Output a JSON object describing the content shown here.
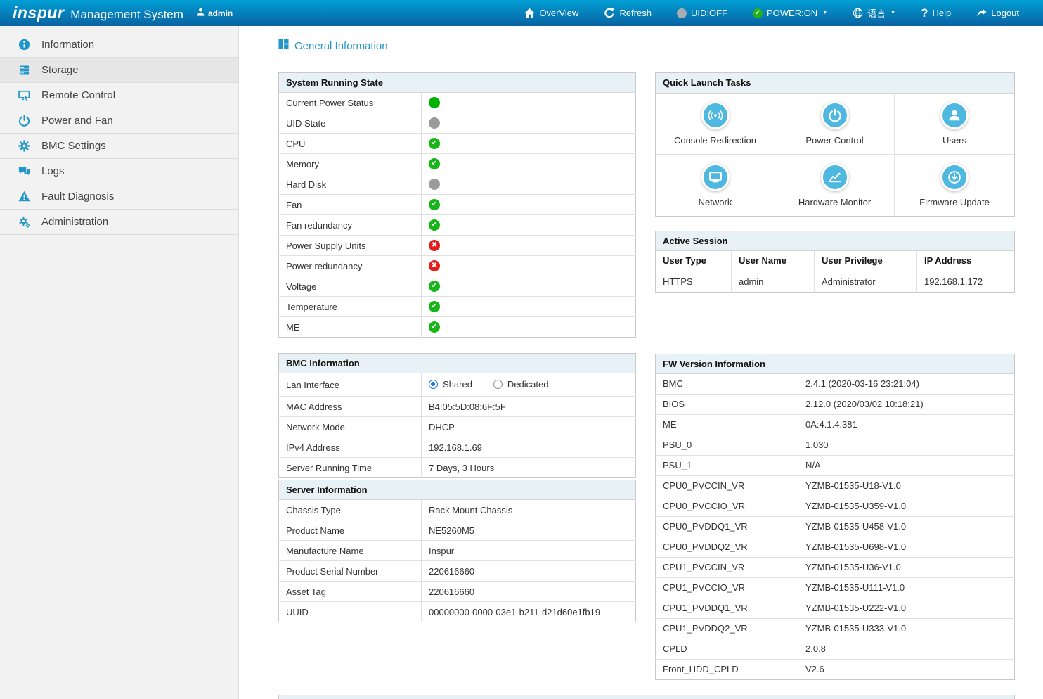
{
  "navbar": {
    "brand": "inspur",
    "product": "Management System",
    "user": "admin",
    "menu": [
      {
        "label": "OverView",
        "icon": "home-icon"
      },
      {
        "label": "Refresh",
        "icon": "refresh-icon"
      },
      {
        "label": "UID:OFF",
        "icon": "uid-off-status-icon"
      },
      {
        "label": "POWER:ON",
        "icon": "power-on-status-icon",
        "caret": true
      },
      {
        "label": "语言",
        "icon": "globe-icon",
        "caret": true
      },
      {
        "label": "Help",
        "icon": "help-icon"
      },
      {
        "label": "Logout",
        "icon": "logout-icon"
      }
    ]
  },
  "sidebar": {
    "items": [
      {
        "label": "Information",
        "icon": "info-icon",
        "active": false
      },
      {
        "label": "Storage",
        "icon": "storage-icon",
        "active": true
      },
      {
        "label": "Remote Control",
        "icon": "remote-control-icon",
        "active": false
      },
      {
        "label": "Power and Fan",
        "icon": "power-icon",
        "active": false
      },
      {
        "label": "BMC Settings",
        "icon": "gear-icon",
        "active": false
      },
      {
        "label": "Logs",
        "icon": "logs-icon",
        "active": false
      },
      {
        "label": "Fault Diagnosis",
        "icon": "warning-icon",
        "active": false
      },
      {
        "label": "Administration",
        "icon": "gears-icon",
        "active": false
      }
    ]
  },
  "main": {
    "page_title": "General Information",
    "system_running_state": {
      "title": "System Running State",
      "rows": [
        {
          "label": "Current Power Status",
          "status": "on"
        },
        {
          "label": "UID State",
          "status": "off"
        },
        {
          "label": "CPU",
          "status": "ok"
        },
        {
          "label": "Memory",
          "status": "ok"
        },
        {
          "label": "Hard Disk",
          "status": "off"
        },
        {
          "label": "Fan",
          "status": "ok"
        },
        {
          "label": "Fan redundancy",
          "status": "ok"
        },
        {
          "label": "Power Supply Units",
          "status": "error"
        },
        {
          "label": "Power redundancy",
          "status": "error"
        },
        {
          "label": "Voltage",
          "status": "ok"
        },
        {
          "label": "Temperature",
          "status": "ok"
        },
        {
          "label": "ME",
          "status": "ok"
        }
      ]
    },
    "quick_launch": {
      "title": "Quick Launch Tasks",
      "tasks": [
        {
          "label": "Console Redirection",
          "icon": "console-redirection-icon"
        },
        {
          "label": "Power Control",
          "icon": "power-control-icon"
        },
        {
          "label": "Users",
          "icon": "users-icon"
        },
        {
          "label": "Network",
          "icon": "network-icon"
        },
        {
          "label": "Hardware Monitor",
          "icon": "hardware-monitor-icon"
        },
        {
          "label": "Firmware Update",
          "icon": "firmware-update-icon"
        }
      ]
    },
    "active_session": {
      "title": "Active Session",
      "columns": [
        "User Type",
        "User Name",
        "User Privilege",
        "IP Address"
      ],
      "rows": [
        {
          "user_type": "HTTPS",
          "user_name": "admin",
          "user_privilege": "Administrator",
          "ip_address": "192.168.1.172"
        }
      ]
    },
    "bmc_information": {
      "title": "BMC Information",
      "lan_interface": {
        "label": "Lan Interface",
        "options": [
          {
            "label": "Shared",
            "selected": true
          },
          {
            "label": "Dedicated",
            "selected": false
          }
        ]
      },
      "rows": [
        {
          "label": "MAC Address",
          "value": "B4:05:5D:08:6F:5F"
        },
        {
          "label": "Network Mode",
          "value": "DHCP"
        },
        {
          "label": "IPv4 Address",
          "value": "192.168.1.69"
        },
        {
          "label": "Server Running Time",
          "value": "7 Days, 3 Hours"
        }
      ]
    },
    "server_information": {
      "title": "Server Information",
      "rows": [
        {
          "label": "Chassis Type",
          "value": "Rack Mount Chassis"
        },
        {
          "label": "Product Name",
          "value": "NE5260M5"
        },
        {
          "label": "Manufacture Name",
          "value": "Inspur"
        },
        {
          "label": "Product Serial Number",
          "value": "220616660"
        },
        {
          "label": "Asset Tag",
          "value": "220616660"
        },
        {
          "label": "UUID",
          "value": "00000000-0000-03e1-b211-d21d60e1fb19"
        }
      ]
    },
    "fw_version": {
      "title": "FW Version Information",
      "rows": [
        {
          "label": "BMC",
          "value": "2.4.1 (2020-03-16 23:21:04)"
        },
        {
          "label": "BIOS",
          "value": "2.12.0 (2020/03/02 10:18:21)"
        },
        {
          "label": "ME",
          "value": "0A:4.1.4.381"
        },
        {
          "label": "PSU_0",
          "value": "1.030"
        },
        {
          "label": "PSU_1",
          "value": "N/A"
        },
        {
          "label": "CPU0_PVCCIN_VR",
          "value": "YZMB-01535-U18-V1.0"
        },
        {
          "label": "CPU0_PVCCIO_VR",
          "value": "YZMB-01535-U359-V1.0"
        },
        {
          "label": "CPU0_PVDDQ1_VR",
          "value": "YZMB-01535-U458-V1.0"
        },
        {
          "label": "CPU0_PVDDQ2_VR",
          "value": "YZMB-01535-U698-V1.0"
        },
        {
          "label": "CPU1_PVCCIN_VR",
          "value": "YZMB-01535-U36-V1.0"
        },
        {
          "label": "CPU1_PVCCIO_VR",
          "value": "YZMB-01535-U111-V1.0"
        },
        {
          "label": "CPU1_PVDDQ1_VR",
          "value": "YZMB-01535-U222-V1.0"
        },
        {
          "label": "CPU1_PVDDQ2_VR",
          "value": "YZMB-01535-U333-V1.0"
        },
        {
          "label": "CPLD",
          "value": "2.0.8"
        },
        {
          "label": "Front_HDD_CPLD",
          "value": "V2.6"
        }
      ]
    }
  },
  "colors": {
    "accent_blue": "#2196c9",
    "quick_launch_icon_blue": "#4fb8e0",
    "status_ok_green": "#16b616",
    "status_power_green": "#00b200",
    "status_error_red": "#e41e1e",
    "status_neutral_gray": "#9b9b9b",
    "navbar_gradient_top": "#009fd4",
    "navbar_gradient_bottom": "#0a62a2"
  }
}
